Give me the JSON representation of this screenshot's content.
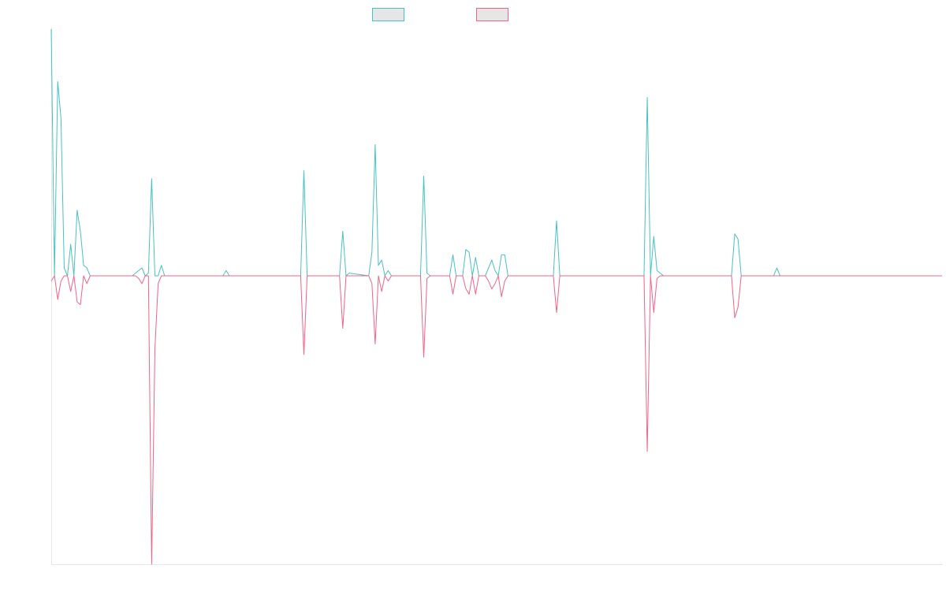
{
  "chart_data": {
    "type": "line",
    "title": "",
    "xlabel": "",
    "ylabel": "",
    "grid": false,
    "legend_placement": "top-center",
    "ylim": [
      -1.1,
      1.0
    ],
    "series": [
      {
        "name": "",
        "color": "#4bc0c0",
        "legend_fill": "#e6e6e6",
        "points": [
          [
            0,
            0.94
          ],
          [
            1,
            0
          ],
          [
            2,
            0.74
          ],
          [
            3,
            0.6
          ],
          [
            4,
            0.03
          ],
          [
            5,
            0
          ],
          [
            6,
            0.12
          ],
          [
            7,
            0
          ],
          [
            8,
            0.25
          ],
          [
            9,
            0.17
          ],
          [
            10,
            0.04
          ],
          [
            11,
            0.03
          ],
          [
            12,
            0
          ],
          [
            25,
            0
          ],
          [
            26,
            0.01
          ],
          [
            27,
            0.02
          ],
          [
            28,
            0.03
          ],
          [
            29,
            0
          ],
          [
            30,
            0.01
          ],
          [
            31,
            0.37
          ],
          [
            32,
            0
          ],
          [
            33,
            0
          ],
          [
            34,
            0.04
          ],
          [
            35,
            0
          ],
          [
            53,
            0
          ],
          [
            54,
            0.02
          ],
          [
            55,
            0
          ],
          [
            77,
            0
          ],
          [
            78,
            0.4
          ],
          [
            79,
            0
          ],
          [
            89,
            0
          ],
          [
            90,
            0.17
          ],
          [
            91,
            0
          ],
          [
            92,
            0.01
          ],
          [
            98,
            0
          ],
          [
            99,
            0.09
          ],
          [
            100,
            0.5
          ],
          [
            101,
            0.04
          ],
          [
            102,
            0.06
          ],
          [
            103,
            0
          ],
          [
            104,
            0.02
          ],
          [
            105,
            0
          ],
          [
            114,
            0
          ],
          [
            115,
            0.38
          ],
          [
            116,
            0.01
          ],
          [
            117,
            0
          ],
          [
            123,
            0
          ],
          [
            124,
            0.08
          ],
          [
            125,
            0
          ],
          [
            127,
            0
          ],
          [
            128,
            0.1
          ],
          [
            129,
            0.09
          ],
          [
            130,
            0
          ],
          [
            131,
            0.07
          ],
          [
            132,
            0
          ],
          [
            134,
            0
          ],
          [
            135,
            0.03
          ],
          [
            136,
            0.06
          ],
          [
            137,
            0.02
          ],
          [
            138,
            0
          ],
          [
            139,
            0.08
          ],
          [
            140,
            0.08
          ],
          [
            141,
            0
          ],
          [
            155,
            0
          ],
          [
            156,
            0.21
          ],
          [
            157,
            0
          ],
          [
            183,
            0
          ],
          [
            184,
            0.68
          ],
          [
            185,
            0
          ],
          [
            186,
            0.15
          ],
          [
            187,
            0.02
          ],
          [
            188,
            0.01
          ],
          [
            189,
            0
          ],
          [
            210,
            0
          ],
          [
            211,
            0.16
          ],
          [
            212,
            0.14
          ],
          [
            213,
            0
          ],
          [
            223,
            0
          ],
          [
            224,
            0.03
          ],
          [
            225,
            0
          ],
          [
            275,
            0
          ]
        ]
      },
      {
        "name": "",
        "color": "#f06488",
        "legend_fill": "#e6e6e6",
        "points": [
          [
            0,
            -0.02
          ],
          [
            1,
            0
          ],
          [
            2,
            -0.09
          ],
          [
            3,
            -0.02
          ],
          [
            4,
            0
          ],
          [
            5,
            0
          ],
          [
            6,
            -0.06
          ],
          [
            7,
            0
          ],
          [
            8,
            -0.1
          ],
          [
            9,
            -0.11
          ],
          [
            10,
            0
          ],
          [
            11,
            -0.03
          ],
          [
            12,
            0
          ],
          [
            25,
            0
          ],
          [
            26,
            0
          ],
          [
            27,
            -0.01
          ],
          [
            28,
            -0.03
          ],
          [
            29,
            0
          ],
          [
            30,
            0
          ],
          [
            31,
            -1.1
          ],
          [
            32,
            -0.28
          ],
          [
            33,
            -0.03
          ],
          [
            34,
            0
          ],
          [
            35,
            0
          ],
          [
            53,
            0
          ],
          [
            54,
            0
          ],
          [
            55,
            0
          ],
          [
            77,
            0
          ],
          [
            78,
            -0.3
          ],
          [
            79,
            0
          ],
          [
            89,
            0
          ],
          [
            90,
            -0.2
          ],
          [
            91,
            0
          ],
          [
            92,
            0
          ],
          [
            98,
            0
          ],
          [
            99,
            -0.03
          ],
          [
            100,
            -0.26
          ],
          [
            101,
            0
          ],
          [
            102,
            -0.06
          ],
          [
            103,
            0
          ],
          [
            104,
            -0.02
          ],
          [
            105,
            0
          ],
          [
            114,
            0
          ],
          [
            115,
            -0.31
          ],
          [
            116,
            -0.01
          ],
          [
            117,
            0
          ],
          [
            123,
            0
          ],
          [
            124,
            -0.07
          ],
          [
            125,
            0
          ],
          [
            127,
            0
          ],
          [
            128,
            -0.05
          ],
          [
            129,
            -0.07
          ],
          [
            130,
            0
          ],
          [
            131,
            -0.07
          ],
          [
            132,
            0
          ],
          [
            134,
            0
          ],
          [
            135,
            -0.02
          ],
          [
            136,
            -0.05
          ],
          [
            137,
            -0.03
          ],
          [
            138,
            0
          ],
          [
            139,
            -0.08
          ],
          [
            140,
            -0.02
          ],
          [
            141,
            0
          ],
          [
            155,
            0
          ],
          [
            156,
            -0.14
          ],
          [
            157,
            0
          ],
          [
            183,
            0
          ],
          [
            184,
            -0.67
          ],
          [
            185,
            0
          ],
          [
            186,
            -0.14
          ],
          [
            187,
            -0.01
          ],
          [
            188,
            0
          ],
          [
            189,
            0
          ],
          [
            210,
            0
          ],
          [
            211,
            -0.16
          ],
          [
            212,
            -0.12
          ],
          [
            213,
            0
          ],
          [
            223,
            0
          ],
          [
            224,
            0
          ],
          [
            225,
            0
          ],
          [
            275,
            0
          ]
        ]
      }
    ]
  }
}
